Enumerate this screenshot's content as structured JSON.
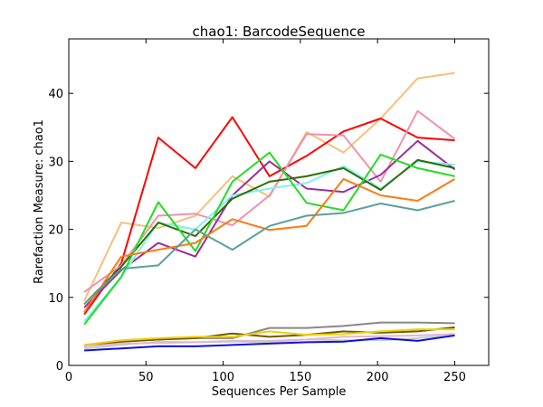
{
  "chart_data": {
    "type": "line",
    "title": "chao1: BarcodeSequence",
    "xlabel": "Sequences Per Sample",
    "ylabel": "Rarefaction Measure: chao1",
    "xlim": [
      0,
      272
    ],
    "ylim": [
      0,
      48
    ],
    "xticks": [
      0,
      50,
      100,
      150,
      200,
      250
    ],
    "yticks": [
      0,
      10,
      20,
      30,
      40
    ],
    "grid": false,
    "x": [
      10,
      34,
      58,
      82,
      106,
      130,
      154,
      178,
      202,
      226,
      250
    ],
    "series": [
      {
        "color": "#f5c07a",
        "values": [
          9.5,
          21.0,
          20.2,
          22.0,
          27.8,
          24.8,
          34.3,
          31.3,
          36.3,
          42.2,
          43.0
        ]
      },
      {
        "color": "#ff0000",
        "values": [
          7.5,
          15.0,
          33.5,
          29.0,
          36.5,
          27.8,
          30.8,
          34.4,
          36.3,
          33.5,
          33.1
        ]
      },
      {
        "color": "#f090b0",
        "values": [
          10.8,
          14.7,
          22.0,
          22.3,
          20.6,
          25.0,
          34.0,
          33.8,
          27.0,
          37.4,
          33.3
        ]
      },
      {
        "color": "#9a2e9a",
        "values": [
          8.5,
          14.0,
          18.0,
          16.0,
          25.0,
          30.0,
          26.0,
          25.5,
          28.0,
          33.0,
          28.8
        ]
      },
      {
        "color": "#80f0f0",
        "values": [
          6.5,
          13.0,
          21.0,
          20.0,
          25.0,
          26.0,
          26.8,
          29.3,
          26.0,
          30.0,
          29.5
        ]
      },
      {
        "color": "#2e6e00",
        "values": [
          9.0,
          14.5,
          21.0,
          19.0,
          24.5,
          27.0,
          27.8,
          29.0,
          25.8,
          30.2,
          29.0
        ]
      },
      {
        "color": "#22dd22",
        "values": [
          6.0,
          13.0,
          24.0,
          16.8,
          27.0,
          31.3,
          23.9,
          22.8,
          31.0,
          29.0,
          27.8
        ]
      },
      {
        "color": "#ff7a10",
        "values": [
          7.8,
          16.0,
          17.0,
          18.0,
          21.5,
          19.9,
          20.5,
          27.4,
          25.0,
          24.2,
          27.4
        ]
      },
      {
        "color": "#5aa09a",
        "values": [
          9.0,
          14.2,
          14.7,
          20.0,
          17.0,
          20.5,
          22.0,
          22.4,
          23.8,
          22.8,
          24.2
        ]
      },
      {
        "color": "#888888",
        "values": [
          3.0,
          3.5,
          3.8,
          4.0,
          4.0,
          5.5,
          5.5,
          5.8,
          6.3,
          6.3,
          6.2
        ]
      },
      {
        "color": "#6b5a00",
        "values": [
          2.8,
          3.5,
          3.8,
          4.0,
          4.7,
          4.2,
          4.5,
          5.0,
          4.8,
          5.0,
          5.6
        ]
      },
      {
        "color": "#f0d000",
        "values": [
          3.0,
          3.7,
          4.0,
          4.2,
          4.2,
          5.0,
          4.5,
          4.6,
          5.0,
          5.3,
          5.3
        ]
      },
      {
        "color": "#c0d0d0",
        "values": [
          2.5,
          3.0,
          3.5,
          3.4,
          3.5,
          3.4,
          3.8,
          3.7,
          3.7,
          4.0,
          4.5
        ]
      },
      {
        "color": "#e8b4cc",
        "values": [
          2.8,
          3.2,
          3.3,
          3.4,
          3.6,
          3.6,
          3.8,
          4.2,
          4.3,
          4.4,
          4.6
        ]
      },
      {
        "color": "#1010dd",
        "values": [
          2.2,
          2.5,
          2.8,
          2.8,
          3.0,
          3.2,
          3.4,
          3.5,
          4.0,
          3.6,
          4.4
        ]
      }
    ]
  }
}
